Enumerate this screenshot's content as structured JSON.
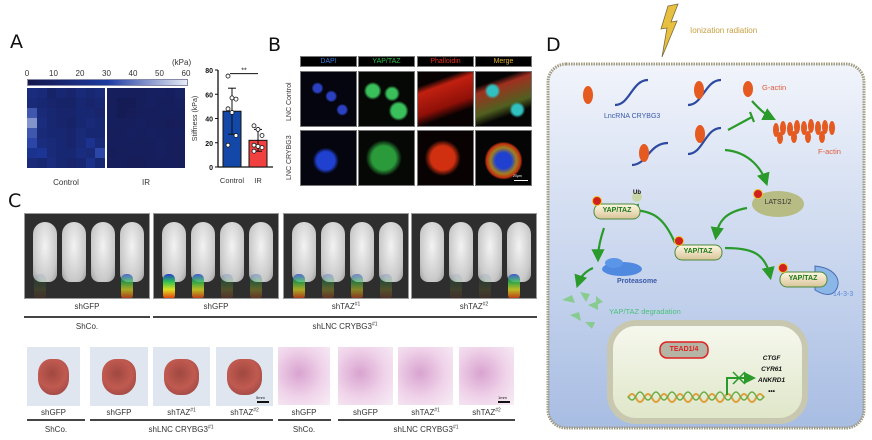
{
  "panel_labels": {
    "a": "A",
    "b": "B",
    "c": "C",
    "d": "D"
  },
  "panel_a": {
    "colorbar": {
      "unit": "(kPa)",
      "ticks": [
        "0",
        "10",
        "20",
        "30",
        "40",
        "50",
        "60"
      ],
      "colors": [
        "#14174a",
        "#1d3aa0",
        "#e8ecf6"
      ]
    },
    "heatmap_labels": [
      "Control",
      "IR"
    ],
    "heatmap_control": [
      [
        18,
        16,
        10,
        14,
        12,
        16,
        14,
        16
      ],
      [
        16,
        14,
        12,
        10,
        10,
        14,
        12,
        14
      ],
      [
        35,
        16,
        14,
        12,
        12,
        14,
        14,
        12
      ],
      [
        45,
        18,
        14,
        12,
        10,
        14,
        16,
        14
      ],
      [
        35,
        16,
        14,
        14,
        12,
        16,
        14,
        14
      ],
      [
        32,
        18,
        16,
        14,
        12,
        16,
        24,
        16
      ],
      [
        24,
        26,
        16,
        14,
        14,
        18,
        16,
        32
      ],
      [
        16,
        14,
        18,
        14,
        12,
        14,
        22,
        14
      ]
    ],
    "heatmap_ir": [
      [
        6,
        7,
        6,
        6,
        8,
        8,
        7,
        9
      ],
      [
        6,
        4,
        4,
        6,
        8,
        7,
        6,
        8
      ],
      [
        7,
        4,
        5,
        6,
        6,
        7,
        6,
        7
      ],
      [
        7,
        6,
        6,
        8,
        6,
        6,
        5,
        6
      ],
      [
        6,
        6,
        8,
        7,
        8,
        7,
        6,
        7
      ],
      [
        7,
        6,
        7,
        6,
        7,
        8,
        6,
        6
      ],
      [
        5,
        6,
        6,
        6,
        6,
        8,
        6,
        6
      ],
      [
        6,
        6,
        5,
        5,
        6,
        6,
        7,
        6
      ]
    ]
  },
  "chart_data": {
    "type": "bar",
    "categories": [
      "Control",
      "IR"
    ],
    "values": [
      46,
      22
    ],
    "error_upper": [
      65,
      31
    ],
    "error_lower": [
      27,
      13
    ],
    "points": [
      [
        75,
        57,
        56,
        48,
        45,
        26,
        18
      ],
      [
        34,
        31,
        26,
        18,
        17,
        16,
        13
      ]
    ],
    "colors": [
      "#1448a8",
      "#f04040"
    ],
    "ylabel": "Stiffness (kPa)",
    "ylim": [
      0,
      80
    ],
    "yticks": [
      "0",
      "20",
      "40",
      "60",
      "80"
    ],
    "significance": "**"
  },
  "panel_b": {
    "columns": [
      {
        "label": "DAPI",
        "color": "#3a7ad8"
      },
      {
        "label": "YAP/TAZ",
        "color": "#2fbf4a"
      },
      {
        "label": "Phalloidin",
        "color": "#e03020"
      },
      {
        "label": "Merge",
        "color": "#e0b030"
      }
    ],
    "rows": [
      "LNC Control",
      "LNC CRYBG3"
    ],
    "scale_bar": "20μm"
  },
  "panel_c": {
    "imaging": {
      "groups": [
        "shGFP",
        "shGFP",
        "shTAZ#1",
        "shTAZ#2"
      ],
      "superscripts": [
        "",
        "",
        "#1",
        "#2"
      ],
      "bases": [
        "shGFP",
        "shGFP",
        "shTAZ",
        "shTAZ"
      ],
      "conditions": [
        "ShCo.",
        "shLNC CRYBG3"
      ],
      "condition_sup": "#1"
    },
    "lungs": {
      "bases": [
        "shGFP",
        "shGFP",
        "shTAZ",
        "shTAZ"
      ],
      "superscripts": [
        "",
        "",
        "#1",
        "#2"
      ],
      "conditions": [
        "ShCo.",
        "shLNC CRYBG3"
      ],
      "condition_sup": "#1",
      "scale_bar": "5mm"
    },
    "histology": {
      "bases": [
        "shGFP",
        "shGFP",
        "shTAZ",
        "shTAZ"
      ],
      "superscripts": [
        "",
        "",
        "#1",
        "#2"
      ],
      "conditions": [
        "ShCo.",
        "shLNC CRYBG3"
      ],
      "condition_sup": "#1",
      "scale_bar": "1mm"
    }
  },
  "panel_d": {
    "stimulus": "Ionization radiation",
    "lncrna": "LncRNA CRYBG3",
    "g_actin": "G-actin",
    "f_actin": "F-actin",
    "lats": "LATS1/2",
    "yap": "YAP/TAZ",
    "ub": "Ub",
    "p": "P",
    "proteasome": "Proteasome",
    "protein_1433": "14-3-3",
    "degradation": "YAP/TAZ degradation",
    "tead": "TEAD1/4",
    "genes": [
      "CTGF",
      "CYR61",
      "ANKRD1",
      "•••"
    ]
  }
}
